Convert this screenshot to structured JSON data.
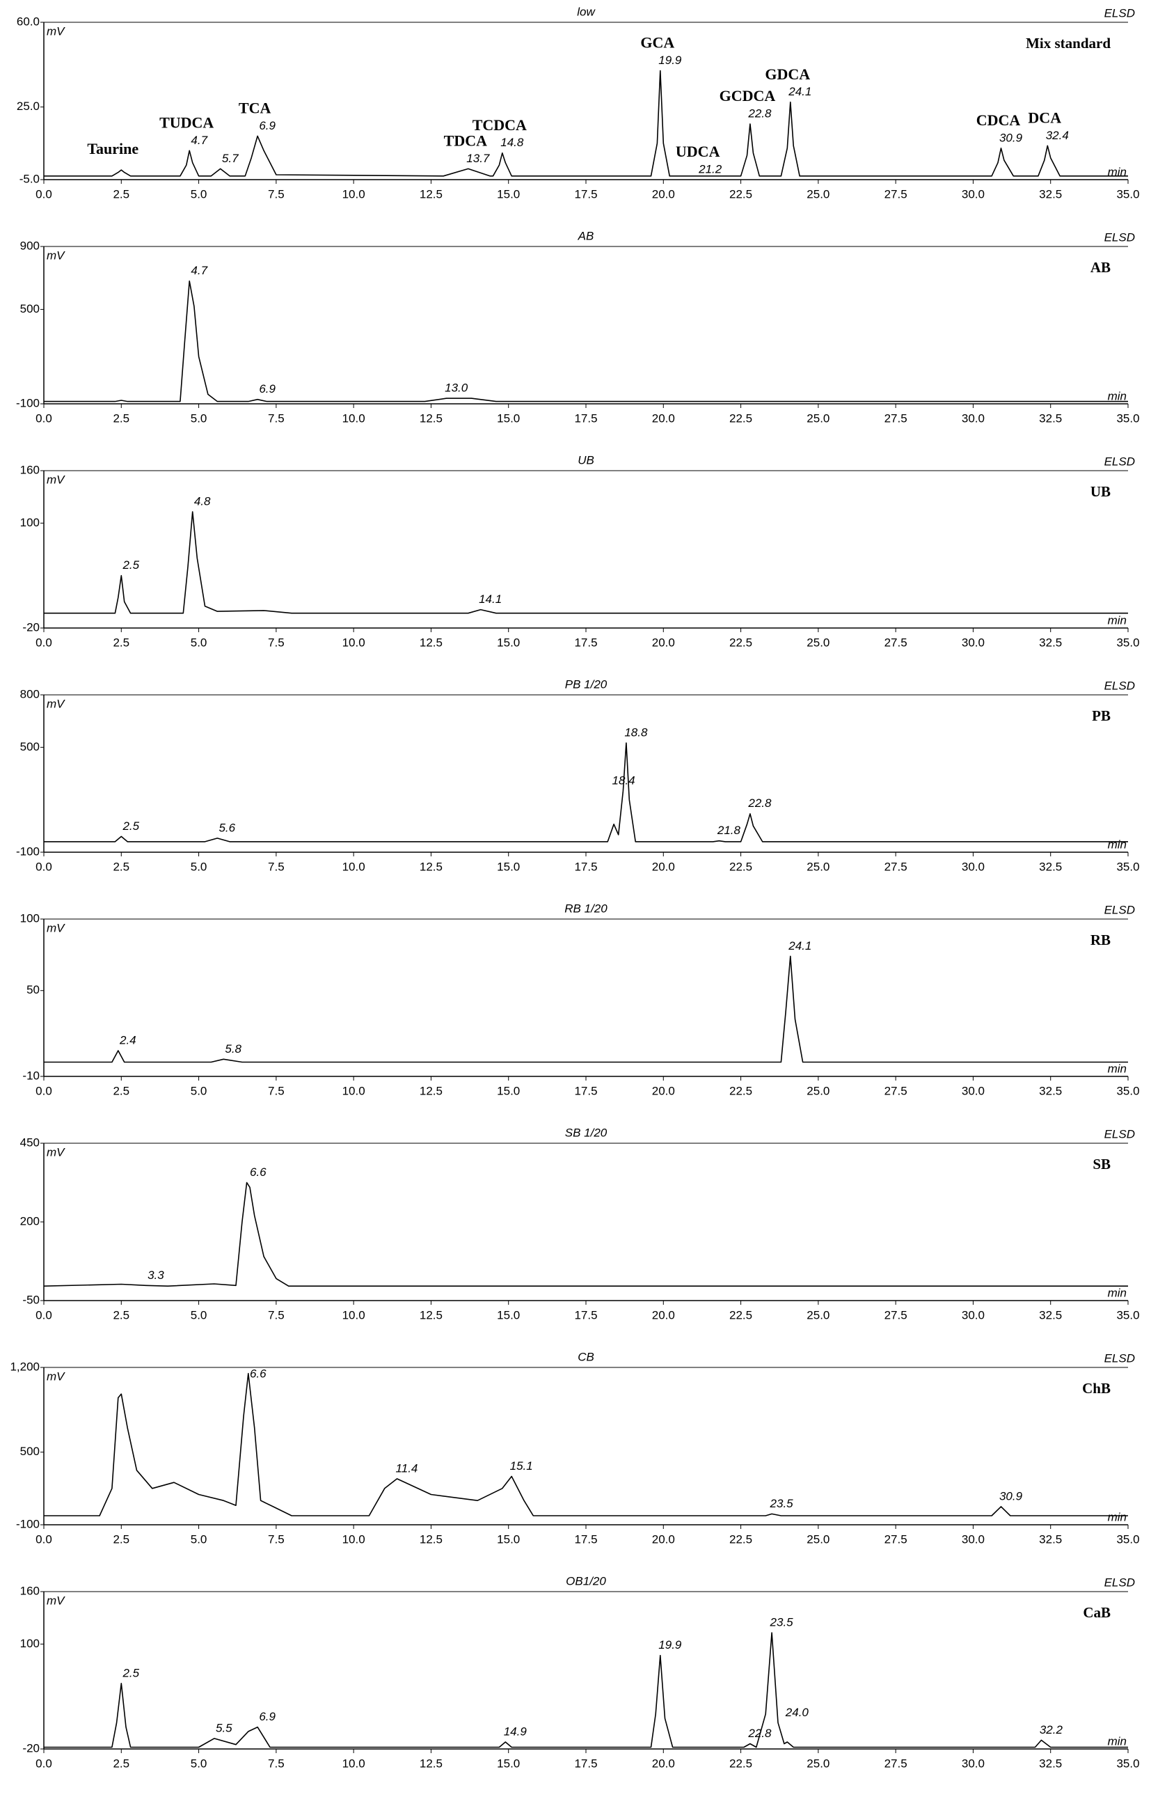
{
  "chart_data": [
    {
      "type": "line",
      "title": "low",
      "detector": "ELSD",
      "side_label": "Mix standard",
      "y_unit": "mV",
      "x_unit": "min",
      "color": "#000000",
      "x": [
        0,
        2.2,
        2.4,
        2.5,
        2.6,
        2.8,
        4.4,
        4.6,
        4.7,
        4.8,
        5.0,
        5.4,
        5.7,
        6.0,
        6.5,
        6.7,
        6.9,
        7.1,
        7.5,
        12.9,
        13.7,
        14.4,
        14.5,
        14.7,
        14.8,
        14.9,
        15.1,
        19.6,
        19.8,
        19.9,
        20.0,
        20.2,
        22.5,
        22.7,
        22.8,
        22.9,
        23.1,
        23.8,
        24.0,
        24.1,
        24.2,
        24.4,
        30.6,
        30.8,
        30.9,
        31.0,
        31.3,
        32.1,
        32.3,
        32.4,
        32.5,
        32.8,
        35
      ],
      "values": [
        -3.5,
        -3.5,
        -2,
        -1,
        -2,
        -3.5,
        -3.5,
        1,
        7,
        2,
        -3.5,
        -3.5,
        -0.5,
        -3.5,
        -3.5,
        4,
        13,
        7,
        -3,
        -3.5,
        -0.5,
        -3.5,
        -3.5,
        1,
        6,
        2,
        -3.5,
        -3.5,
        10,
        40,
        10,
        -3.5,
        -3.5,
        5,
        18,
        6,
        -3.5,
        -3.5,
        8,
        27,
        9,
        -3.5,
        -3.5,
        2,
        8,
        3,
        -3.5,
        -3.5,
        3,
        9,
        4,
        -3.5,
        -3.5
      ],
      "xlim": [
        0,
        35
      ],
      "xticks": [
        {
          "value": 0,
          "label": "0.0"
        },
        2.5,
        {
          "value": 5,
          "label": "5.0"
        },
        7.5,
        {
          "value": 10,
          "label": "10.0"
        },
        12.5,
        {
          "value": 15,
          "label": "15.0"
        },
        17.5,
        {
          "value": 20,
          "label": "20.0"
        },
        22.5,
        {
          "value": 25,
          "label": "25.0"
        },
        27.5,
        {
          "value": 30,
          "label": "30.0"
        },
        32.5,
        {
          "value": 35,
          "label": "35.0"
        }
      ],
      "ylim": [
        -5,
        60
      ],
      "yticks": [
        {
          "value": -5,
          "label": "-5.0"
        },
        {
          "value": 25,
          "label": "25.0"
        },
        {
          "value": 60,
          "label": "60.0"
        }
      ],
      "peaks": [
        {
          "compound": "Taurine"
        },
        {
          "time": 4.7,
          "compound": "TUDCA"
        },
        {
          "time": 5.7
        },
        {
          "time": 6.9,
          "compound": "TCA"
        },
        {
          "time": 13.7,
          "compound": "TDCA"
        },
        {
          "time": 14.8,
          "compound": "TCDCA"
        },
        {
          "time": 19.9,
          "compound": "GCA"
        },
        {
          "time": 21.2,
          "compound": "UDCA"
        },
        {
          "time": 22.8,
          "compound": "GCDCA"
        },
        {
          "time": 24.1,
          "compound": "GDCA"
        },
        {
          "time": 30.9,
          "compound": "CDCA"
        },
        {
          "time": 32.4,
          "compound": "DCA"
        }
      ]
    },
    {
      "type": "line",
      "title": "AB",
      "detector": "ELSD",
      "side_label": "AB",
      "y_unit": "mV",
      "x_unit": "min",
      "color": "#000000",
      "x": [
        0,
        2.3,
        2.5,
        2.7,
        4.4,
        4.55,
        4.7,
        4.85,
        5.0,
        5.3,
        5.6,
        6.6,
        6.9,
        7.2,
        12.3,
        13.0,
        13.8,
        14.6,
        35
      ],
      "values": [
        -85,
        -85,
        -78,
        -85,
        -85,
        300,
        680,
        520,
        200,
        -40,
        -85,
        -85,
        -72,
        -85,
        -85,
        -65,
        -65,
        -85,
        -85
      ],
      "xlim": [
        0,
        35
      ],
      "xticks": [
        {
          "value": 0,
          "label": "0.0"
        },
        2.5,
        {
          "value": 5,
          "label": "5.0"
        },
        7.5,
        {
          "value": 10,
          "label": "10.0"
        },
        12.5,
        {
          "value": 15,
          "label": "15.0"
        },
        17.5,
        {
          "value": 20,
          "label": "20.0"
        },
        22.5,
        {
          "value": 25,
          "label": "25.0"
        },
        27.5,
        {
          "value": 30,
          "label": "30.0"
        },
        32.5,
        {
          "value": 35,
          "label": "35.0"
        }
      ],
      "ylim": [
        -100,
        900
      ],
      "yticks": [
        -100,
        500,
        900
      ],
      "peaks": [
        {
          "time": 4.7
        },
        {
          "time": 6.9
        },
        {
          "time": 13,
          "label": "13.0"
        }
      ]
    },
    {
      "type": "line",
      "title": "UB",
      "detector": "ELSD",
      "side_label": "UB",
      "y_unit": "mV",
      "x_unit": "min",
      "color": "#000000",
      "x": [
        0,
        2.3,
        2.4,
        2.5,
        2.6,
        2.8,
        4.5,
        4.65,
        4.8,
        4.95,
        5.2,
        5.6,
        7.1,
        8,
        13.7,
        14.1,
        14.6,
        35
      ],
      "values": [
        -3,
        -3,
        15,
        40,
        10,
        -3,
        -3,
        50,
        113,
        60,
        5,
        -1,
        0,
        -3,
        -3,
        1,
        -3,
        -3
      ],
      "xlim": [
        0,
        35
      ],
      "xticks": [
        {
          "value": 0,
          "label": "0.0"
        },
        2.5,
        {
          "value": 5,
          "label": "5.0"
        },
        7.5,
        {
          "value": 10,
          "label": "10.0"
        },
        12.5,
        {
          "value": 15,
          "label": "15.0"
        },
        17.5,
        {
          "value": 20,
          "label": "20.0"
        },
        22.5,
        {
          "value": 25,
          "label": "25.0"
        },
        27.5,
        {
          "value": 30,
          "label": "30.0"
        },
        32.5,
        {
          "value": 35,
          "label": "35.0"
        }
      ],
      "ylim": [
        -20,
        160
      ],
      "yticks": [
        -20,
        100,
        160
      ],
      "peaks": [
        {
          "time": 2.5
        },
        {
          "time": 4.8
        },
        {
          "time": 14.1
        }
      ]
    },
    {
      "type": "line",
      "title": "PB 1/20",
      "detector": "ELSD",
      "side_label": "PB",
      "y_unit": "mV",
      "x_unit": "min",
      "color": "#000000",
      "x": [
        0,
        2.3,
        2.5,
        2.7,
        5.2,
        5.6,
        6.0,
        18.2,
        18.4,
        18.55,
        18.7,
        18.8,
        18.9,
        19.1,
        21.6,
        21.8,
        22.0,
        22.5,
        22.7,
        22.8,
        22.9,
        23.2,
        35
      ],
      "values": [
        -40,
        -40,
        -10,
        -40,
        -40,
        -20,
        -40,
        -40,
        60,
        0,
        250,
        525,
        200,
        -40,
        -40,
        -35,
        -40,
        -40,
        60,
        120,
        50,
        -40,
        -40
      ],
      "xlim": [
        0,
        35
      ],
      "xticks": [
        {
          "value": 0,
          "label": "0.0"
        },
        2.5,
        {
          "value": 5,
          "label": "5.0"
        },
        7.5,
        {
          "value": 10,
          "label": "10.0"
        },
        12.5,
        {
          "value": 15,
          "label": "15.0"
        },
        17.5,
        {
          "value": 20,
          "label": "20.0"
        },
        22.5,
        {
          "value": 25,
          "label": "25.0"
        },
        27.5,
        {
          "value": 30,
          "label": "30.0"
        },
        32.5,
        {
          "value": 35,
          "label": "35.0"
        }
      ],
      "ylim": [
        -100,
        800
      ],
      "yticks": [
        -100,
        500,
        800
      ],
      "peaks": [
        {
          "time": 2.5
        },
        {
          "time": 5.6
        },
        {
          "time": 18.4
        },
        {
          "time": 18.8
        },
        {
          "time": 21.8
        },
        {
          "time": 22.8
        }
      ]
    },
    {
      "type": "line",
      "title": "RB 1/20",
      "detector": "ELSD",
      "side_label": "RB",
      "y_unit": "mV",
      "x_unit": "min",
      "color": "#000000",
      "x": [
        0,
        2.2,
        2.4,
        2.6,
        5.4,
        5.8,
        6.4,
        23.8,
        23.95,
        24.1,
        24.25,
        24.5,
        35
      ],
      "values": [
        0,
        0,
        8,
        0,
        0,
        2,
        0,
        0,
        35,
        74,
        30,
        0,
        0
      ],
      "xlim": [
        0,
        35
      ],
      "xticks": [
        {
          "value": 0,
          "label": "0.0"
        },
        2.5,
        {
          "value": 5,
          "label": "5.0"
        },
        7.5,
        {
          "value": 10,
          "label": "10.0"
        },
        12.5,
        {
          "value": 15,
          "label": "15.0"
        },
        17.5,
        {
          "value": 20,
          "label": "20.0"
        },
        22.5,
        {
          "value": 25,
          "label": "25.0"
        },
        27.5,
        {
          "value": 30,
          "label": "30.0"
        },
        32.5,
        {
          "value": 35,
          "label": "35.0"
        }
      ],
      "ylim": [
        -10,
        100
      ],
      "yticks": [
        -10,
        50,
        100
      ],
      "peaks": [
        {
          "time": 2.4
        },
        {
          "time": 5.8
        },
        {
          "time": 24.1
        }
      ]
    },
    {
      "type": "line",
      "title": "SB 1/20",
      "detector": "ELSD",
      "side_label": "SB",
      "y_unit": "mV",
      "x_unit": "min",
      "color": "#000000",
      "x": [
        0,
        2.5,
        3.3,
        4,
        5.5,
        6.2,
        6.4,
        6.55,
        6.65,
        6.8,
        7.1,
        7.5,
        7.9,
        35
      ],
      "values": [
        -4,
        2,
        -2,
        -4,
        3,
        -2,
        200,
        325,
        310,
        220,
        90,
        20,
        -4,
        -4
      ],
      "xlim": [
        0,
        35
      ],
      "xticks": [
        {
          "value": 0,
          "label": "0.0"
        },
        2.5,
        {
          "value": 5,
          "label": "5.0"
        },
        7.5,
        {
          "value": 10,
          "label": "10.0"
        },
        12.5,
        {
          "value": 15,
          "label": "15.0"
        },
        17.5,
        {
          "value": 20,
          "label": "20.0"
        },
        22.5,
        {
          "value": 25,
          "label": "25.0"
        },
        27.5,
        {
          "value": 30,
          "label": "30.0"
        },
        32.5,
        {
          "value": 35,
          "label": "35.0"
        }
      ],
      "ylim": [
        -50,
        450
      ],
      "yticks": [
        -50,
        200,
        450
      ],
      "peaks": [
        {
          "time": 3.3
        },
        {
          "time": 6.6
        }
      ]
    },
    {
      "type": "line",
      "title": "CB",
      "detector": "ELSD",
      "side_label": "ChB",
      "y_unit": "mV",
      "x_unit": "min",
      "color": "#000000",
      "x": [
        0,
        1.8,
        2.2,
        2.4,
        2.5,
        2.7,
        3.0,
        3.5,
        4.2,
        5.0,
        5.8,
        6.2,
        6.45,
        6.6,
        6.8,
        7.0,
        7.4,
        8,
        10.5,
        11.0,
        11.4,
        12.5,
        14,
        14.8,
        15.1,
        15.5,
        15.8,
        23.3,
        23.5,
        23.8,
        30.6,
        30.9,
        31.2,
        35
      ],
      "values": [
        -25,
        -25,
        200,
        950,
        980,
        700,
        350,
        200,
        250,
        150,
        100,
        60,
        800,
        1150,
        700,
        100,
        50,
        -25,
        -25,
        200,
        280,
        150,
        100,
        200,
        300,
        100,
        -25,
        -25,
        -10,
        -25,
        -25,
        50,
        -25,
        -25
      ],
      "xlim": [
        0,
        35
      ],
      "xticks": [
        {
          "value": 0,
          "label": "0.0"
        },
        2.5,
        {
          "value": 5,
          "label": "5.0"
        },
        7.5,
        {
          "value": 10,
          "label": "10.0"
        },
        12.5,
        {
          "value": 15,
          "label": "15.0"
        },
        17.5,
        {
          "value": 20,
          "label": "20.0"
        },
        22.5,
        {
          "value": 25,
          "label": "25.0"
        },
        27.5,
        {
          "value": 30,
          "label": "30.0"
        },
        32.5,
        {
          "value": 35,
          "label": "35.0"
        }
      ],
      "ylim": [
        -100,
        1200
      ],
      "yticks": [
        -100,
        500,
        {
          "value": 1200,
          "label": "1,200"
        }
      ],
      "peaks": [
        {
          "time": 6.6
        },
        {
          "time": 11.4
        },
        {
          "time": 15.1
        },
        {
          "time": 23.5
        },
        {
          "time": 30.9
        }
      ]
    },
    {
      "type": "line",
      "title": "OB1/20",
      "detector": "ELSD",
      "side_label": "CaB",
      "y_unit": "mV",
      "x_unit": "min",
      "color": "#000000",
      "x": [
        0,
        2.2,
        2.35,
        2.5,
        2.65,
        2.8,
        5.0,
        5.5,
        6.2,
        6.6,
        6.9,
        7.3,
        14.7,
        14.9,
        15.1,
        19.6,
        19.75,
        19.9,
        20.05,
        20.3,
        22.6,
        22.8,
        23.0,
        23.3,
        23.5,
        23.7,
        23.9,
        24.0,
        24.2,
        32.0,
        32.2,
        32.5,
        35
      ],
      "values": [
        -18,
        -18,
        10,
        55,
        5,
        -18,
        -18,
        -8,
        -15,
        0,
        5,
        -18,
        -18,
        -12,
        -18,
        -18,
        20,
        87,
        15,
        -18,
        -18,
        -14,
        -18,
        20,
        113,
        10,
        -14,
        -12,
        -18,
        -18,
        -10,
        -18,
        -18
      ],
      "xlim": [
        0,
        35
      ],
      "xticks": [
        {
          "value": 0,
          "label": "0.0"
        },
        2.5,
        {
          "value": 5,
          "label": "5.0"
        },
        7.5,
        {
          "value": 10,
          "label": "10.0"
        },
        12.5,
        {
          "value": 15,
          "label": "15.0"
        },
        17.5,
        {
          "value": 20,
          "label": "20.0"
        },
        22.5,
        {
          "value": 25,
          "label": "25.0"
        },
        27.5,
        {
          "value": 30,
          "label": "30.0"
        },
        32.5,
        {
          "value": 35,
          "label": "35.0"
        }
      ],
      "ylim": [
        -20,
        160
      ],
      "yticks": [
        -20,
        100,
        160
      ],
      "peaks": [
        {
          "time": 2.5
        },
        {
          "time": 5.5
        },
        {
          "time": 6.9
        },
        {
          "time": 14.9
        },
        {
          "time": 19.9
        },
        {
          "time": 22.8
        },
        {
          "time": 23.5
        },
        {
          "time": 24,
          "label": "24.0"
        },
        {
          "time": 32.2
        }
      ]
    }
  ]
}
